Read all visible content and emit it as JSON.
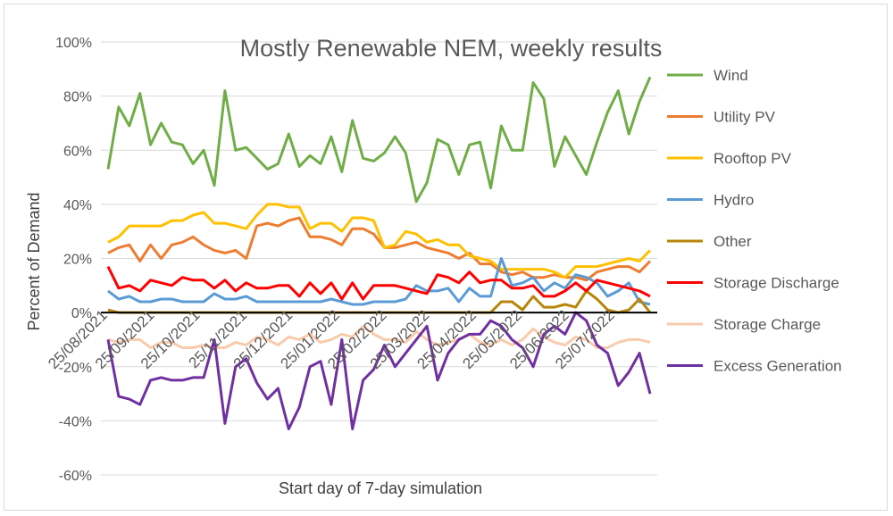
{
  "chart_data": {
    "type": "line",
    "title": "Mostly Renewable NEM, weekly results",
    "xlabel": "Start day of 7-day simulation",
    "ylabel": "Percent of Demand",
    "ylim": [
      -60,
      100
    ],
    "yticks": [
      -60,
      -40,
      -20,
      0,
      20,
      40,
      60,
      80,
      100
    ],
    "ytick_labels": [
      "-60%",
      "-40%",
      "-20%",
      "0%",
      "20%",
      "40%",
      "60%",
      "80%",
      "100%"
    ],
    "grid": "horizontal",
    "legend": "right",
    "x_start": "2021-08-25",
    "x_step_days": 7,
    "n_points": 52,
    "xtick_labels": [
      "25/08/2021",
      "25/09/2021",
      "25/10/2021",
      "25/11/2021",
      "25/12/2021",
      "25/01/2022",
      "25/02/2022",
      "25/03/2022",
      "25/04/2022",
      "25/05/2022",
      "25/06/2022",
      "25/07/2022"
    ],
    "xtick_dates": [
      "2021-08-25",
      "2021-09-25",
      "2021-10-25",
      "2021-11-25",
      "2021-12-25",
      "2022-01-25",
      "2022-02-25",
      "2022-03-25",
      "2022-04-25",
      "2022-05-25",
      "2022-06-25",
      "2022-07-25"
    ],
    "series": [
      {
        "name": "Wind",
        "color": "#70ad47",
        "values": [
          53,
          76,
          69,
          81,
          62,
          70,
          63,
          62,
          55,
          60,
          47,
          82,
          60,
          61,
          57,
          53,
          55,
          66,
          54,
          58,
          55,
          65,
          52,
          71,
          57,
          56,
          59,
          65,
          59,
          41,
          48,
          64,
          62,
          51,
          62,
          63,
          46,
          69,
          60,
          60,
          85,
          79,
          54,
          65,
          58,
          51,
          63,
          74,
          82,
          66,
          78,
          87
        ]
      },
      {
        "name": "Utility PV",
        "color": "#ed7d31",
        "values": [
          22,
          24,
          25,
          19,
          25,
          20,
          25,
          26,
          28,
          25,
          23,
          22,
          23,
          20,
          32,
          33,
          32,
          34,
          35,
          28,
          28,
          27,
          25,
          31,
          31,
          29,
          24,
          24,
          25,
          26,
          24,
          23,
          22,
          20,
          22,
          18,
          18,
          15,
          14,
          15,
          13,
          13,
          14,
          13,
          13,
          12,
          15,
          16,
          17,
          17,
          15,
          19
        ]
      },
      {
        "name": "Rooftop PV",
        "color": "#ffc000",
        "values": [
          26,
          28,
          32,
          32,
          32,
          32,
          34,
          34,
          36,
          37,
          33,
          33,
          32,
          31,
          36,
          40,
          40,
          39,
          39,
          31,
          33,
          33,
          30,
          35,
          35,
          34,
          24,
          25,
          30,
          29,
          26,
          27,
          25,
          25,
          21,
          20,
          19,
          16,
          16,
          16,
          16,
          16,
          15,
          13,
          17,
          17,
          17,
          18,
          19,
          20,
          19,
          23
        ]
      },
      {
        "name": "Hydro",
        "color": "#5b9bd5",
        "values": [
          8,
          5,
          6,
          4,
          4,
          5,
          5,
          4,
          4,
          4,
          7,
          5,
          5,
          6,
          4,
          4,
          4,
          4,
          4,
          4,
          4,
          5,
          4,
          3,
          3,
          4,
          4,
          4,
          5,
          10,
          8,
          8,
          9,
          4,
          9,
          6,
          6,
          20,
          10,
          11,
          13,
          8,
          11,
          9,
          14,
          13,
          11,
          6,
          8,
          11,
          4,
          3
        ]
      },
      {
        "name": "Other",
        "color": "#b8860b",
        "values": [
          1,
          0,
          0,
          0,
          0,
          0,
          0,
          0,
          0,
          0,
          0,
          0,
          0,
          0,
          0,
          0,
          0,
          0,
          0,
          0,
          0,
          0,
          0,
          0,
          0,
          0,
          0,
          0,
          0,
          0,
          0,
          0,
          0,
          0,
          0,
          0,
          0,
          4,
          4,
          1,
          6,
          2,
          2,
          3,
          2,
          8,
          5,
          1,
          0,
          1,
          5,
          0
        ]
      },
      {
        "name": "Storage Discharge",
        "color": "#ff0000",
        "values": [
          17,
          9,
          10,
          8,
          12,
          11,
          10,
          13,
          12,
          12,
          9,
          12,
          8,
          11,
          9,
          9,
          10,
          10,
          6,
          11,
          7,
          11,
          5,
          11,
          5,
          10,
          10,
          10,
          9,
          8,
          7,
          14,
          13,
          11,
          15,
          11,
          12,
          12,
          9,
          9,
          10,
          6,
          6,
          8,
          11,
          8,
          12,
          11,
          10,
          9,
          8,
          6
        ]
      },
      {
        "name": "Storage Charge",
        "color": "#f8cbad",
        "values": [
          -10,
          -11,
          -10,
          -10,
          -13,
          -11,
          -11,
          -13,
          -13,
          -12,
          -13,
          -13,
          -11,
          -12,
          -9,
          -10,
          -12,
          -9,
          -10,
          -8,
          -11,
          -10,
          -8,
          -9,
          -5,
          -8,
          -10,
          -10,
          -11,
          -7,
          -10,
          -12,
          -11,
          -10,
          -8,
          -11,
          -12,
          -10,
          -12,
          -10,
          -6,
          -9,
          -11,
          -12,
          -9,
          -10,
          -13,
          -13,
          -11,
          -10,
          -10,
          -11
        ]
      },
      {
        "name": "Excess Generation",
        "color": "#7030a0",
        "values": [
          -10,
          -31,
          -32,
          -34,
          -25,
          -24,
          -25,
          -25,
          -24,
          -24,
          -10,
          -41,
          -20,
          -17,
          -26,
          -32,
          -28,
          -43,
          -35,
          -20,
          -18,
          -34,
          -10,
          -43,
          -25,
          -21,
          -12,
          -20,
          -15,
          -10,
          -5,
          -25,
          -15,
          -10,
          -8,
          -8,
          -3,
          -5,
          -10,
          -13,
          -20,
          -8,
          -5,
          -8,
          0,
          -3,
          -12,
          -15,
          -27,
          -22,
          -15,
          -30
        ]
      }
    ]
  }
}
